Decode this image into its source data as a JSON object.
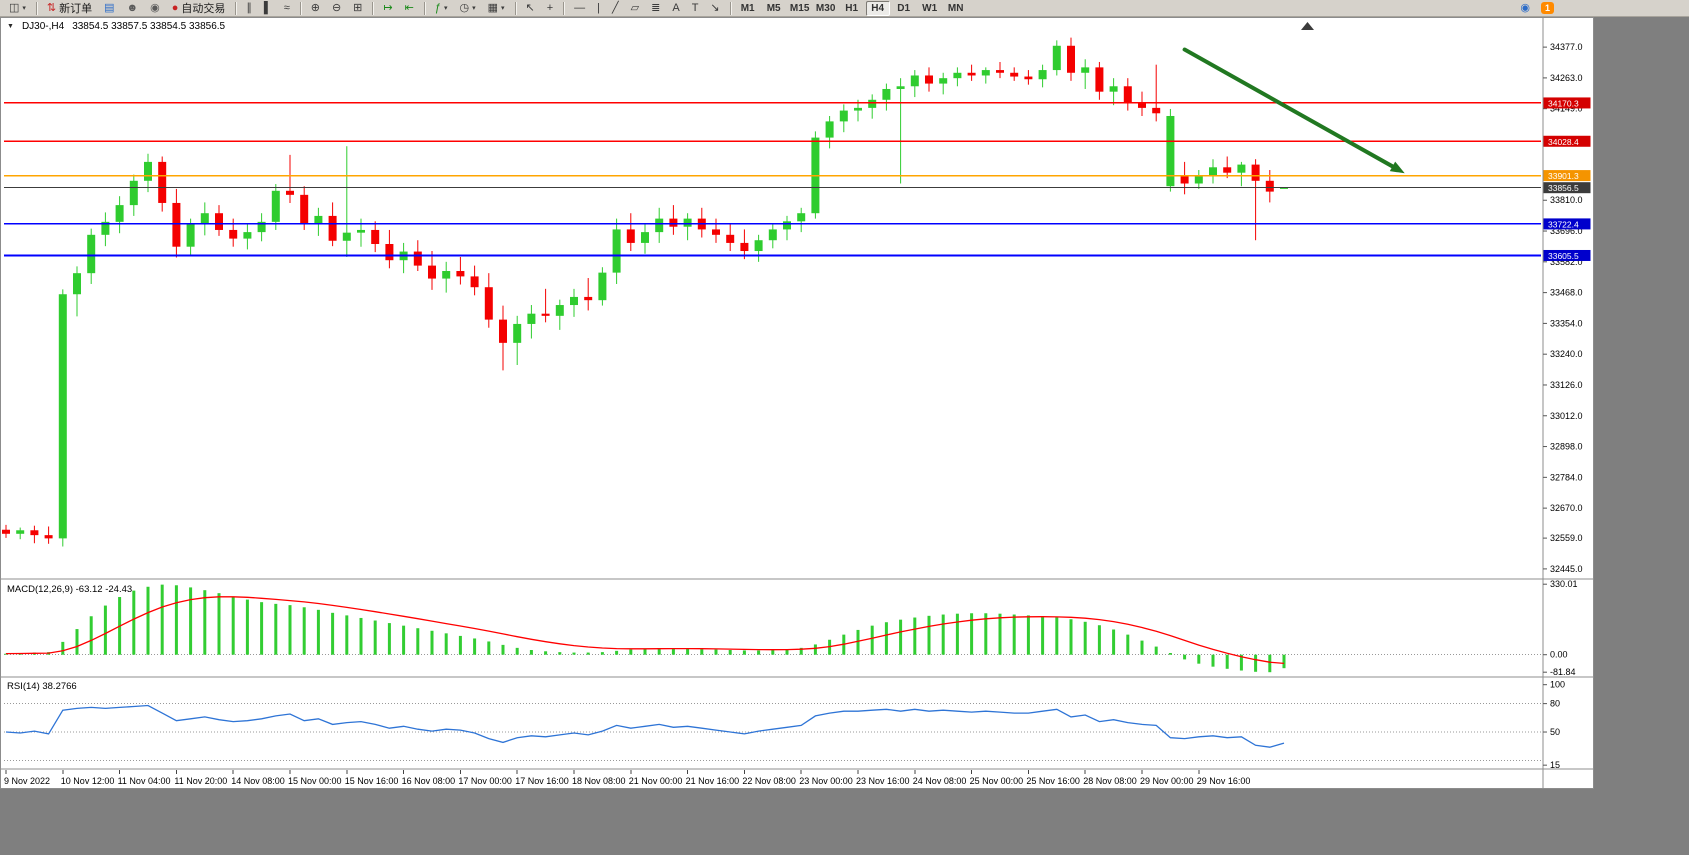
{
  "window": {
    "chart_title": "DJ30-,H4",
    "ohlc": "33854.5 33857.5 33854.5 33856.5"
  },
  "toolbar": {
    "new_order_label": "新订单",
    "autotrade_label": "自动交易",
    "badge_count": "1",
    "timeframes": [
      "M1",
      "M5",
      "M15",
      "M30",
      "H1",
      "H4",
      "D1",
      "W1",
      "MN"
    ],
    "active_timeframe": "H4"
  },
  "icons": {
    "chart_selector": "◫",
    "dropdown": "▾",
    "collapsed": "▼",
    "new_order": "⇅",
    "market_watch": "▤",
    "navigator": "☻",
    "sound": "◉",
    "autotrade": "●",
    "bars": "∥",
    "candles": "▌",
    "line_chart": "≈",
    "zoom_in": "⊕",
    "zoom_out": "⊖",
    "tile": "⊞",
    "autoscroll": "↦",
    "shift": "⇤",
    "indicators": "ƒ",
    "periods": "◷",
    "templates": "▦",
    "cursor": "↖",
    "crosshair": "+",
    "hline": "—",
    "vline": "|",
    "trendline": "╱",
    "channel": "▱",
    "fibo": "≣",
    "text": "A",
    "label": "T",
    "arrows": "↘",
    "community": "◉"
  },
  "colors": {
    "up": "#2fcc2f",
    "down": "#f40000",
    "macd_hist": "#32cd32",
    "macd_signal": "#ff0000",
    "rsi_line": "#2e74d6",
    "hline_red": "#ff0000",
    "hline_orange": "#ffa500",
    "hline_blue": "#0000ff",
    "current_line": "#3c3c3c",
    "arrow": "#217821",
    "label_red_bg": "#d40000",
    "label_orange_bg": "#f59400",
    "label_blue_bg": "#0000cc",
    "label_current_bg": "#3c3c3c"
  },
  "chart_data": {
    "type": "candlestick",
    "symbol": "DJ30-",
    "timeframe": "H4",
    "current_price": 33856.5,
    "price_axis": {
      "min": 32415,
      "max": 34470,
      "ticks": [
        34377.0,
        34263.0,
        34149.0,
        33810.0,
        33696.0,
        33582.0,
        33468.0,
        33354.0,
        33240.0,
        33126.0,
        33012.0,
        32898.0,
        32784.0,
        32670.0,
        32559.0,
        32445.0
      ]
    },
    "time_labels": [
      "9 Nov 2022",
      "10 Nov 12:00",
      "11 Nov 04:00",
      "11 Nov 20:00",
      "14 Nov 08:00",
      "15 Nov 00:00",
      "15 Nov 16:00",
      "16 Nov 08:00",
      "17 Nov 00:00",
      "17 Nov 16:00",
      "18 Nov 08:00",
      "21 Nov 00:00",
      "21 Nov 16:00",
      "22 Nov 08:00",
      "23 Nov 00:00",
      "23 Nov 16:00",
      "24 Nov 08:00",
      "25 Nov 00:00",
      "25 Nov 16:00",
      "28 Nov 08:00",
      "29 Nov 00:00",
      "29 Nov 16:00"
    ],
    "label_every_n_bars": 4,
    "candles": {
      "open": [
        32590,
        32575,
        32588,
        32570,
        32558,
        33462,
        33540,
        33682,
        33730,
        33792,
        33882,
        33952,
        33800,
        33638,
        33722,
        33762,
        33700,
        33668,
        33692,
        33730,
        33845,
        33830,
        33722,
        33752,
        33660,
        33690,
        33700,
        33648,
        33588,
        33620,
        33568,
        33520,
        33548,
        33528,
        33488,
        33368,
        33282,
        33352,
        33390,
        33382,
        33422,
        33452,
        33440,
        33542,
        33702,
        33652,
        33692,
        33742,
        33712,
        33742,
        33702,
        33682,
        33652,
        33622,
        33662,
        33702,
        33732,
        33762,
        34042,
        34102,
        34142,
        34152,
        34182,
        34222,
        34232,
        34272,
        34242,
        34262,
        34282,
        34272,
        34292,
        34282,
        34268,
        34258,
        34292,
        34382,
        34282,
        34302,
        34212,
        34232,
        34172,
        34152,
        33862,
        33902,
        33872,
        33902,
        33932,
        33912,
        33942,
        33882,
        33854.5
      ],
      "high": [
        32608,
        32598,
        32605,
        32602,
        33480,
        33565,
        33705,
        33765,
        33825,
        33905,
        33982,
        33972,
        33852,
        33742,
        33802,
        33792,
        33742,
        33722,
        33762,
        33870,
        33978,
        33862,
        33782,
        33802,
        34010,
        33742,
        33732,
        33700,
        33652,
        33662,
        33622,
        33582,
        33600,
        33568,
        33540,
        33420,
        33382,
        33422,
        33482,
        33442,
        33482,
        33522,
        33562,
        33742,
        33762,
        33722,
        33782,
        33792,
        33762,
        33782,
        33742,
        33722,
        33702,
        33682,
        33722,
        33752,
        33782,
        34065,
        34122,
        34165,
        34182,
        34202,
        34242,
        34262,
        34292,
        34302,
        34282,
        34302,
        34312,
        34302,
        34322,
        34302,
        34292,
        34312,
        34402,
        34412,
        34332,
        34322,
        34262,
        34262,
        34212,
        34312,
        34148,
        33952,
        33922,
        33962,
        33972,
        33952,
        33962,
        33922,
        33857.5
      ],
      "low": [
        32560,
        32555,
        32540,
        32538,
        32528,
        33380,
        33500,
        33640,
        33688,
        33752,
        33840,
        33768,
        33598,
        33608,
        33680,
        33678,
        33638,
        33628,
        33658,
        33700,
        33800,
        33700,
        33678,
        33640,
        33600,
        33638,
        33618,
        33558,
        33540,
        33548,
        33478,
        33468,
        33498,
        33458,
        33338,
        33180,
        33200,
        33298,
        33358,
        33330,
        33378,
        33402,
        33420,
        33500,
        33622,
        33612,
        33652,
        33682,
        33662,
        33672,
        33652,
        33622,
        33592,
        33582,
        33632,
        33662,
        33692,
        33742,
        34002,
        34062,
        34102,
        34112,
        34142,
        33872,
        34192,
        34212,
        34202,
        34232,
        34252,
        34242,
        34262,
        34252,
        34238,
        34228,
        34272,
        34252,
        34222,
        34182,
        34162,
        34142,
        34122,
        34102,
        33842,
        33832,
        33852,
        33872,
        33892,
        33862,
        33662,
        33802,
        33854.5
      ],
      "close": [
        32575,
        32588,
        32570,
        32558,
        33462,
        33540,
        33682,
        33730,
        33792,
        33882,
        33952,
        33800,
        33638,
        33722,
        33762,
        33700,
        33668,
        33692,
        33730,
        33845,
        33830,
        33722,
        33752,
        33660,
        33690,
        33700,
        33648,
        33588,
        33620,
        33568,
        33520,
        33548,
        33528,
        33488,
        33368,
        33282,
        33352,
        33390,
        33382,
        33422,
        33452,
        33440,
        33542,
        33702,
        33652,
        33692,
        33742,
        33712,
        33742,
        33702,
        33682,
        33652,
        33622,
        33662,
        33702,
        33732,
        33762,
        34042,
        34102,
        34142,
        34152,
        34182,
        34222,
        34232,
        34272,
        34242,
        34262,
        34282,
        34272,
        34292,
        34282,
        34268,
        34258,
        34292,
        34382,
        34282,
        34302,
        34212,
        34232,
        34172,
        34152,
        34132,
        34122,
        33872,
        33902,
        33932,
        33912,
        33942,
        33882,
        33842,
        33856.5
      ]
    },
    "hlines": [
      {
        "price": 34170.3,
        "label": "34170.3",
        "color_key": "hline_red",
        "bg_key": "label_red_bg"
      },
      {
        "price": 34028.4,
        "label": "34028.4",
        "color_key": "hline_red",
        "bg_key": "label_red_bg"
      },
      {
        "price": 33901.3,
        "label": "33901.3",
        "color_key": "hline_orange",
        "bg_key": "label_orange_bg"
      },
      {
        "price": 33722.4,
        "label": "33722.4",
        "color_key": "hline_blue",
        "bg_key": "label_blue_bg"
      },
      {
        "price": 33605.5,
        "label": "33605.5",
        "color_key": "hline_blue",
        "bg_key": "label_blue_bg"
      }
    ],
    "arrow": {
      "bar1": 83.0,
      "price1": 34368,
      "bar2": 98.5,
      "price2": 33910
    },
    "macd": {
      "label": "MACD(12,26,9)",
      "values_text": "-63.12 -24.43",
      "scale_labels": [
        "330.01",
        "0.00",
        "-81.84"
      ],
      "scale_values": [
        330.01,
        0.0,
        -81.84
      ],
      "range": {
        "min": -95,
        "max": 345
      },
      "histogram": [
        5,
        8,
        10,
        12,
        60,
        120,
        180,
        230,
        270,
        300,
        318,
        328,
        325,
        315,
        302,
        288,
        272,
        258,
        246,
        238,
        232,
        222,
        210,
        196,
        184,
        172,
        160,
        148,
        136,
        124,
        112,
        100,
        88,
        76,
        62,
        46,
        32,
        22,
        16,
        12,
        10,
        10,
        12,
        18,
        24,
        28,
        30,
        30,
        28,
        26,
        24,
        22,
        20,
        20,
        22,
        26,
        32,
        48,
        70,
        94,
        116,
        136,
        152,
        164,
        174,
        182,
        188,
        192,
        194,
        194,
        192,
        188,
        184,
        180,
        174,
        166,
        154,
        138,
        118,
        94,
        66,
        38,
        8,
        -22,
        -42,
        -56,
        -66,
        -74,
        -80,
        -81.84,
        -63.12
      ]
    },
    "rsi": {
      "label": "RSI(14)",
      "value_text": "38.2766",
      "scale_labels": [
        "100",
        "80",
        "50",
        "15"
      ],
      "scale_values": [
        100,
        80,
        50,
        15
      ],
      "levels": [
        80,
        50,
        20
      ],
      "range": {
        "min": 12,
        "max": 106
      },
      "values": [
        50,
        49,
        51,
        48,
        73,
        75,
        76,
        75,
        76,
        77,
        78,
        70,
        62,
        64,
        66,
        63,
        61,
        62,
        64,
        67,
        69,
        62,
        64,
        58,
        60,
        61,
        58,
        54,
        56,
        53,
        51,
        53,
        52,
        49,
        43,
        39,
        44,
        46,
        45,
        47,
        49,
        47,
        51,
        57,
        54,
        56,
        58,
        55,
        56,
        54,
        52,
        50,
        48,
        51,
        53,
        55,
        57,
        67,
        70,
        72,
        72,
        73,
        74,
        72,
        74,
        72,
        73,
        72,
        71,
        72,
        71,
        70,
        70,
        72,
        74,
        66,
        68,
        61,
        63,
        60,
        58,
        57,
        44,
        43,
        45,
        46,
        44,
        45,
        36,
        34,
        38.28
      ]
    }
  }
}
